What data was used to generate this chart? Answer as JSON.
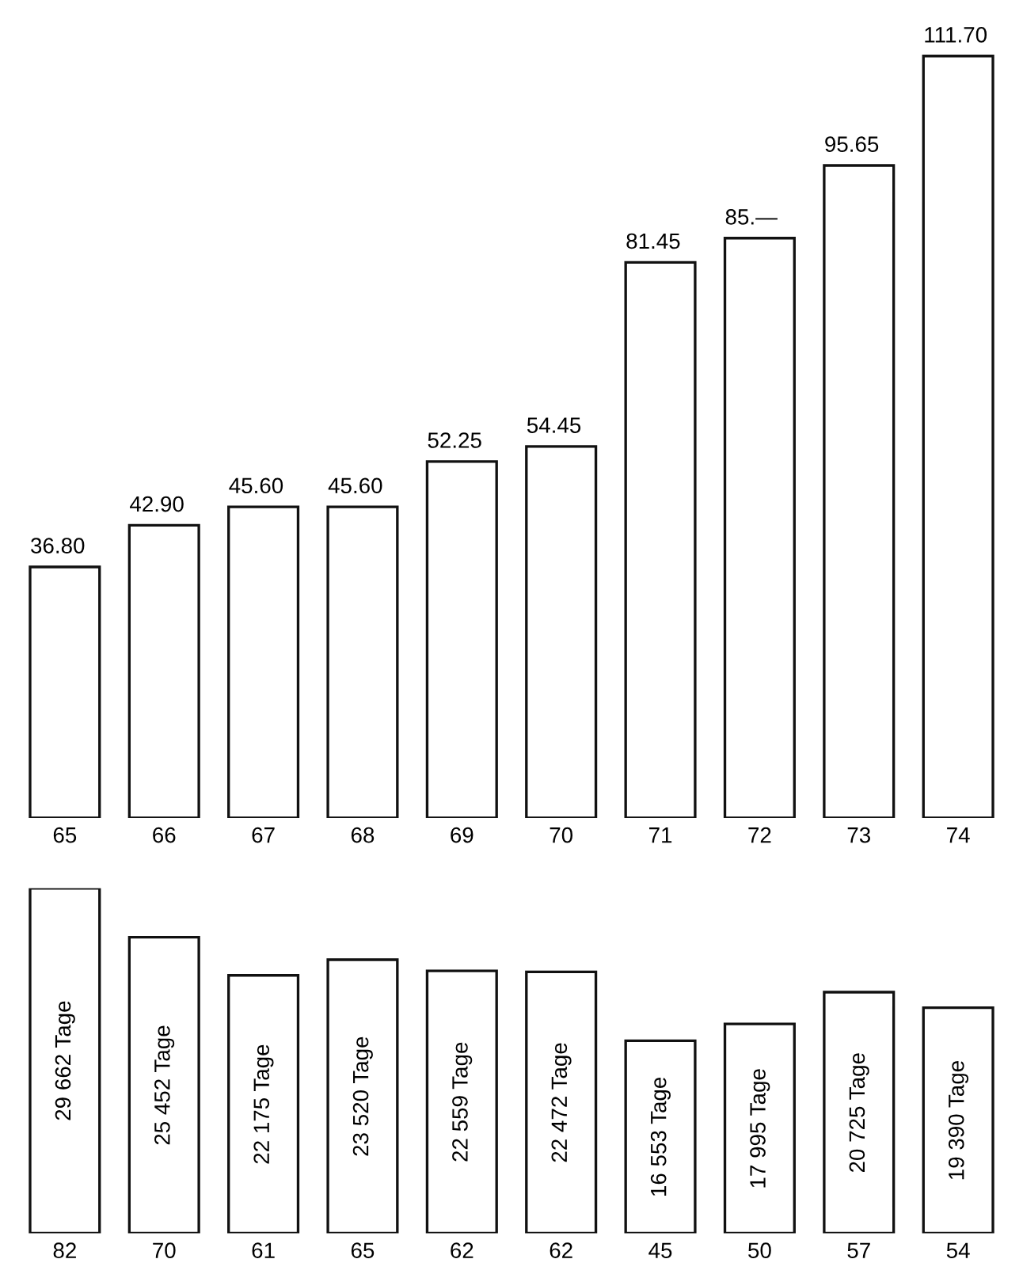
{
  "chart_data": [
    {
      "type": "bar",
      "categories": [
        "65",
        "66",
        "67",
        "68",
        "69",
        "70",
        "71",
        "72",
        "73",
        "74"
      ],
      "values": [
        36.8,
        42.9,
        45.6,
        45.6,
        52.25,
        54.45,
        81.45,
        85.0,
        95.65,
        111.7
      ],
      "color": "#ffffff",
      "value_labels": [
        "36.80",
        "42.90",
        "45.60",
        "45.60",
        "52.25",
        "54.45",
        "81.45",
        "85.—",
        "95.65",
        "111.70"
      ],
      "grid": false,
      "legend": false
    },
    {
      "type": "bar",
      "categories": [
        "82",
        "70",
        "61",
        "65",
        "62",
        "62",
        "45",
        "50",
        "57",
        "54"
      ],
      "values": [
        29662,
        25452,
        22175,
        23520,
        22559,
        22472,
        16553,
        17995,
        20725,
        19390
      ],
      "color": "#ffffff",
      "value_labels": [
        "29 662 Tage",
        "25 452 Tage",
        "22 175 Tage",
        "23 520 Tage",
        "22 559 Tage",
        "22 472 Tage",
        "16 553 Tage",
        "17 995 Tage",
        "20 725 Tage",
        "19 390 Tage"
      ],
      "grid": false,
      "legend": false
    }
  ]
}
